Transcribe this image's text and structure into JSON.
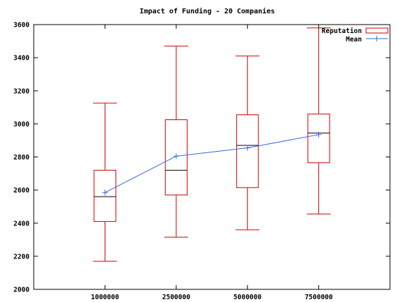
{
  "chart_data": {
    "type": "box",
    "title": "Impact of Funding - 20 Companies",
    "xlabel": "",
    "ylabel": "",
    "categories": [
      "1000000",
      "2500000",
      "5000000",
      "7500000"
    ],
    "ylim": [
      2000,
      3600
    ],
    "yticks": [
      "2000",
      "2200",
      "2400",
      "2600",
      "2800",
      "3000",
      "3200",
      "3400",
      "3600"
    ],
    "grid": false,
    "legend_position": "top-right",
    "series": [
      {
        "name": "Reputation",
        "kind": "box",
        "color": "#cc0000",
        "median_color": "#000000",
        "boxes": [
          {
            "min": 2170,
            "q1": 2410,
            "median": 2560,
            "q3": 2720,
            "max": 3125
          },
          {
            "min": 2315,
            "q1": 2570,
            "median": 2720,
            "q3": 3025,
            "max": 3470
          },
          {
            "min": 2360,
            "q1": 2615,
            "median": 2870,
            "q3": 3055,
            "max": 3410
          },
          {
            "min": 2455,
            "q1": 2765,
            "median": 2945,
            "q3": 3060,
            "max": 3580
          }
        ]
      },
      {
        "name": "Mean",
        "kind": "line",
        "marker": "plus",
        "color": "#3366dd",
        "values": [
          2585,
          2805,
          2855,
          2935
        ]
      }
    ]
  }
}
